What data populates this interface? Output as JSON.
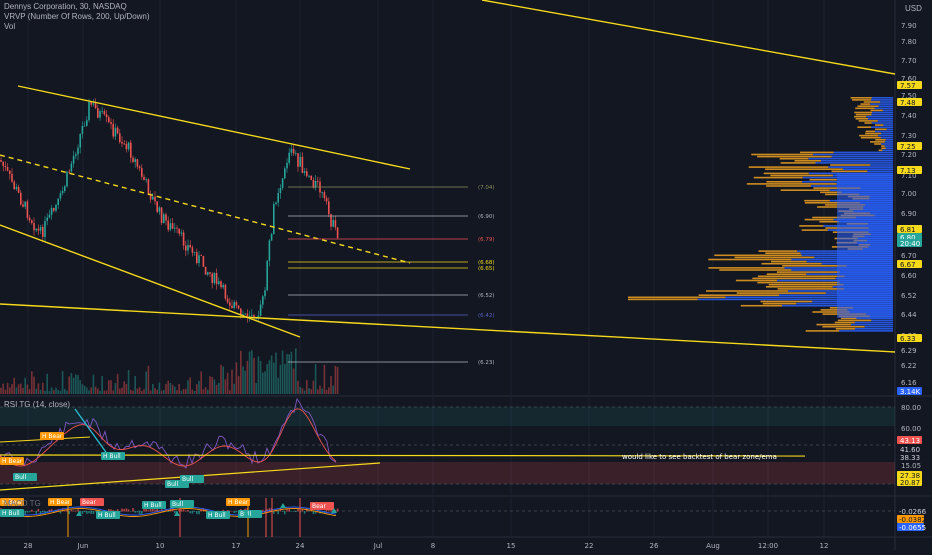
{
  "header": {
    "symbol_line": "Dennys Corporation, 30, NASDAQ",
    "indicator_1": "VRVP (Number Of Rows, 200, Up/Down)",
    "indicator_2": "Vol",
    "currency": "USD"
  },
  "price_axis": {
    "ticks": [
      "7.90",
      "7.80",
      "7.70",
      "7.60",
      "7.50",
      "7.40",
      "7.30",
      "7.20",
      "7.10",
      "7.00",
      "6.90",
      "6.80",
      "6.70",
      "6.60",
      "6.52",
      "6.44",
      "6.36",
      "6.29",
      "6.22",
      "6.16"
    ],
    "badges": [
      {
        "text": "7.57",
        "bg": "#f5d91a",
        "fg": "#131722"
      },
      {
        "text": "7.48",
        "bg": "#f5d91a",
        "fg": "#131722"
      },
      {
        "text": "7.25",
        "bg": "#f5d91a",
        "fg": "#131722"
      },
      {
        "text": "7.13",
        "bg": "#f5d91a",
        "fg": "#131722"
      },
      {
        "text": "6.81",
        "bg": "#f5d91a",
        "fg": "#131722"
      },
      {
        "text": "6.80",
        "bg": "#26a69a",
        "fg": "#ffffff"
      },
      {
        "text": "20:40",
        "bg": "#26a69a",
        "fg": "#ffffff"
      },
      {
        "text": "6.67",
        "bg": "#f5d91a",
        "fg": "#131722"
      },
      {
        "text": "6.33",
        "bg": "#f5d91a",
        "fg": "#131722"
      },
      {
        "text": "3.14K",
        "bg": "#2962ff",
        "fg": "#ffffff"
      }
    ]
  },
  "fib_labels": [
    "(7.04)",
    "(6.90)",
    "(6.79)",
    "(6.68)",
    "(6.65)",
    "(6.52)",
    "(6.42)",
    "(6.23)"
  ],
  "rsi": {
    "title": "RSI TG (14, close)",
    "ticks": [
      "80.00",
      "60.00",
      "41.60",
      "38.33",
      "15.05"
    ],
    "badges": [
      {
        "text": "43.13",
        "bg": "#ef5350",
        "fg": "#ffffff"
      },
      {
        "text": "41.60",
        "bg": "#131722",
        "fg": "#d1d4dc"
      },
      {
        "text": "38.33",
        "bg": "#131722",
        "fg": "#d1d4dc"
      },
      {
        "text": "27.38",
        "bg": "#f5d91a",
        "fg": "#131722"
      },
      {
        "text": "20.87",
        "bg": "#f5d91a",
        "fg": "#131722"
      }
    ],
    "annotation": "would like to see backtest of bear zone/ema",
    "labels": [
      "H Bear",
      "H Bear",
      "H Bull",
      "Bull",
      "Bull",
      "Bull"
    ]
  },
  "macd": {
    "title": "MACD TG",
    "badges": [
      {
        "text": "-0.0266",
        "bg": "#131722",
        "fg": "#d1d4dc"
      },
      {
        "text": "-0.0382",
        "bg": "#ff9800",
        "fg": "#131722"
      },
      {
        "text": "-0.0655",
        "bg": "#2962ff",
        "fg": "#ffffff"
      }
    ],
    "labels": [
      "H Bear",
      "H Bear",
      "Bear",
      "H Bull",
      "H Bull",
      "H Bull",
      "Bull",
      "H Bull",
      "Bull",
      "H Bear",
      "Bear"
    ]
  },
  "time_axis": [
    "28",
    "Jun",
    "10",
    "17",
    "24",
    "Jul",
    "8",
    "15",
    "22",
    "26",
    "Aug",
    "12:00",
    "12"
  ],
  "colors": {
    "background": "#131722",
    "trendline": "#f5d91a",
    "up": "#26a69a",
    "down": "#ef5350",
    "vp_up": "#2962ff",
    "vp_down": "#f0a020"
  }
}
